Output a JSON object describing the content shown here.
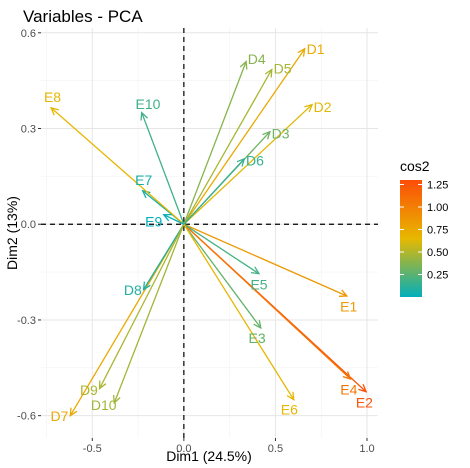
{
  "chart_data": {
    "type": "scatter",
    "title": "Variables - PCA",
    "xlabel": "Dim1 (24.5%)",
    "ylabel": "Dim2 (13%)",
    "xlim": [
      -0.78,
      1.06
    ],
    "ylim": [
      -0.67,
      0.615
    ],
    "x_ticks": [
      {
        "value": -0.5,
        "label": "-0.5"
      },
      {
        "value": 0.0,
        "label": "0.0"
      },
      {
        "value": 0.5,
        "label": "0.5"
      },
      {
        "value": 1.0,
        "label": "1.0"
      }
    ],
    "y_ticks": [
      {
        "value": -0.6,
        "label": "-0.6"
      },
      {
        "value": -0.3,
        "label": "-0.3"
      },
      {
        "value": 0.0,
        "label": "0.0"
      },
      {
        "value": 0.3,
        "label": "0.3"
      },
      {
        "value": 0.6,
        "label": "0.6"
      }
    ],
    "grid": true,
    "reference_lines": {
      "x": 0,
      "y": 0,
      "style": "dashed"
    },
    "legend": {
      "title": "cos2",
      "position": "right",
      "min": 0.0,
      "max": 1.3,
      "ticks": [
        {
          "value": 1.25,
          "label": "1.25"
        },
        {
          "value": 1.0,
          "label": "1.00"
        },
        {
          "value": 0.75,
          "label": "0.75"
        },
        {
          "value": 0.5,
          "label": "0.50"
        },
        {
          "value": 0.25,
          "label": "0.25"
        }
      ],
      "colors": [
        "#00AFBB",
        "#E7B800",
        "#FC4E07"
      ]
    },
    "variables": [
      {
        "name": "D1",
        "x": 0.66,
        "y": 0.55,
        "cos2": 0.74
      },
      {
        "name": "D2",
        "x": 0.7,
        "y": 0.375,
        "cos2": 0.63
      },
      {
        "name": "D3",
        "x": 0.47,
        "y": 0.29,
        "cos2": 0.31
      },
      {
        "name": "D4",
        "x": 0.34,
        "y": 0.51,
        "cos2": 0.38
      },
      {
        "name": "D5",
        "x": 0.48,
        "y": 0.485,
        "cos2": 0.47
      },
      {
        "name": "D6",
        "x": 0.33,
        "y": 0.205,
        "cos2": 0.15
      },
      {
        "name": "D7",
        "x": -0.62,
        "y": -0.6,
        "cos2": 0.74
      },
      {
        "name": "D8",
        "x": -0.22,
        "y": -0.205,
        "cos2": 0.09
      },
      {
        "name": "D9",
        "x": -0.46,
        "y": -0.515,
        "cos2": 0.48
      },
      {
        "name": "D10",
        "x": -0.38,
        "y": -0.56,
        "cos2": 0.46
      },
      {
        "name": "E1",
        "x": 0.89,
        "y": -0.225,
        "cos2": 0.84
      },
      {
        "name": "E2",
        "x": 0.995,
        "y": -0.525,
        "cos2": 1.27
      },
      {
        "name": "E3",
        "x": 0.42,
        "y": -0.325,
        "cos2": 0.28
      },
      {
        "name": "E4",
        "x": 0.91,
        "y": -0.485,
        "cos2": 1.06
      },
      {
        "name": "E5",
        "x": 0.41,
        "y": -0.155,
        "cos2": 0.19
      },
      {
        "name": "E6",
        "x": 0.6,
        "y": -0.55,
        "cos2": 0.66
      },
      {
        "name": "E7",
        "x": -0.225,
        "y": 0.105,
        "cos2": 0.06
      },
      {
        "name": "E8",
        "x": -0.725,
        "y": 0.365,
        "cos2": 0.66
      },
      {
        "name": "E9",
        "x": -0.11,
        "y": 0.03,
        "cos2": 0.01
      },
      {
        "name": "E10",
        "x": -0.23,
        "y": 0.35,
        "cos2": 0.18
      }
    ]
  }
}
